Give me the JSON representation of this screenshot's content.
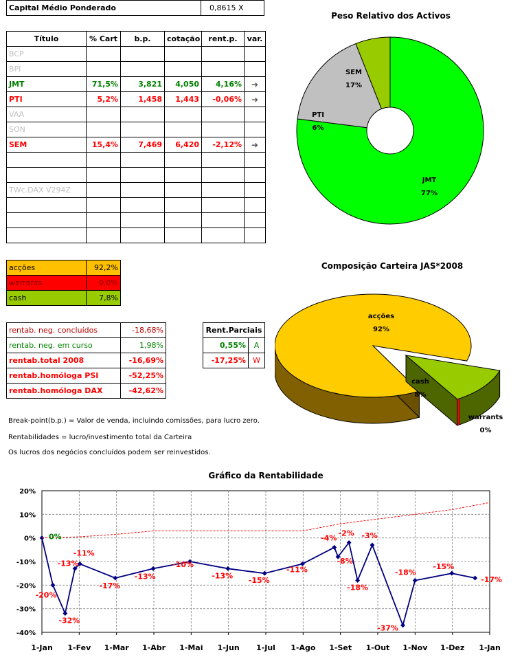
{
  "summary": {
    "label": "Capital Médio Ponderado",
    "value": "0,8615  X"
  },
  "main_table": {
    "headers": [
      "Título",
      "% Cart",
      "b.p.",
      "cotação",
      "rent.p.",
      "var."
    ],
    "rows": [
      {
        "cells": [
          "BCP",
          "",
          "",
          "",
          "",
          ""
        ],
        "style": "grey"
      },
      {
        "cells": [
          "BPI",
          "",
          "",
          "",
          "",
          ""
        ],
        "style": "grey"
      },
      {
        "cells": [
          "JMT",
          "71,5%",
          "3,821",
          "4,050",
          "4,16%",
          "➜"
        ],
        "style": "green"
      },
      {
        "cells": [
          "PTI",
          "5,2%",
          "1,458",
          "1,443",
          "-0,06%",
          "➜"
        ],
        "style": "red"
      },
      {
        "cells": [
          "VAA",
          "",
          "",
          "",
          "",
          ""
        ],
        "style": "grey"
      },
      {
        "cells": [
          "SON",
          "",
          "",
          "",
          "",
          ""
        ],
        "style": "grey"
      },
      {
        "cells": [
          "SEM",
          "15,4%",
          "7,469",
          "6,420",
          "-2,12%",
          "➜"
        ],
        "style": "red"
      },
      {
        "cells": [
          "",
          "",
          "",
          "",
          "",
          ""
        ],
        "style": "grey"
      },
      {
        "cells": [
          "",
          "",
          "",
          "",
          "",
          ""
        ],
        "style": "grey"
      },
      {
        "cells": [
          "TWc.DAX V294Z",
          "",
          "",
          "",
          "",
          ""
        ],
        "style": "grey"
      },
      {
        "cells": [
          "",
          "",
          "",
          "",
          "",
          ""
        ],
        "style": "grey"
      },
      {
        "cells": [
          "",
          "",
          "",
          "",
          "",
          ""
        ],
        "style": "grey"
      },
      {
        "cells": [
          "",
          "",
          "",
          "",
          "",
          ""
        ],
        "style": "grey"
      }
    ]
  },
  "composition": [
    {
      "label": "acções",
      "value": "92,2%",
      "color": "#ffc000",
      "text_color": "#000000"
    },
    {
      "label": "warrants",
      "value": "0,0%",
      "color": "#ff0000",
      "text_color": "#800000"
    },
    {
      "label": "cash",
      "value": "7,8%",
      "color": "#99cc00",
      "text_color": "#000000"
    }
  ],
  "returns": [
    {
      "label": "rentab. neg. concluídos",
      "value": "-18,68%",
      "label_color": "#c00000",
      "value_color": "#c00000",
      "bold": false
    },
    {
      "label": "rentab. neg. em curso",
      "value": "1,98%",
      "label_color": "#008000",
      "value_color": "#008000",
      "bold": false
    },
    {
      "label": "rentab.total 2008",
      "value": "-16,69%",
      "label_color": "#ff0000",
      "value_color": "#ff0000",
      "bold": true
    },
    {
      "label": "rentab.homóloga PSI",
      "value": "-52,25%",
      "label_color": "#ff0000",
      "value_color": "#ff0000",
      "bold": true
    },
    {
      "label": "rentab.homóloga DAX",
      "value": "-42,62%",
      "label_color": "#ff0000",
      "value_color": "#ff0000",
      "bold": true
    }
  ],
  "partial": {
    "header": "Rent.Parciais",
    "rows": [
      {
        "value": "0,55%",
        "letter": "A",
        "color": "#008000"
      },
      {
        "value": "-17,25%",
        "letter": "W",
        "color": "#ff0000"
      }
    ]
  },
  "notes": [
    "Break-point(b.p.) = Valor de venda, incluindo comissões, para lucro zero.",
    "Rentabilidades = lucro/investimento total da Carteira",
    "Os lucros dos negócios concluídos podem ser reinvestidos."
  ],
  "chart_data": [
    {
      "type": "pie",
      "title": "Peso Relativo dos Activos",
      "style": "donut",
      "slices": [
        {
          "label": "JMT",
          "value": 77,
          "display": "77%",
          "color": "#00ff00"
        },
        {
          "label": "SEM",
          "value": 17,
          "display": "17%",
          "color": "#c0c0c0"
        },
        {
          "label": "PTI",
          "value": 6,
          "display": "6%",
          "color": "#99cc00"
        }
      ]
    },
    {
      "type": "pie",
      "title": "Composição Carteira JAS*2008",
      "style": "3d-exploded",
      "slices": [
        {
          "label": "acções",
          "value": 92,
          "display": "92%",
          "color": "#ffcc00"
        },
        {
          "label": "cash",
          "value": 8,
          "display": "8%",
          "color": "#99cc00"
        },
        {
          "label": "warrants",
          "value": 0,
          "display": "0%",
          "color": "#ff0000"
        }
      ]
    },
    {
      "type": "line",
      "title": "Gráfico da Rentabilidade",
      "x_tick_labels": [
        "1-Jan",
        "1-Fev",
        "1-Mar",
        "1-Abr",
        "1-Mai",
        "1-Jun",
        "1-Jul",
        "1-Ago",
        "1-Set",
        "1-Out",
        "1-Nov",
        "1-Dez",
        "1-Jan"
      ],
      "y_tick_labels": [
        "20%",
        "10%",
        "0%",
        "-10%",
        "-20%",
        "-30%",
        "-40%"
      ],
      "ylim": [
        -40,
        20
      ],
      "grid": "horizontal-and-vertical-dashed",
      "series": [
        {
          "style": "solid-navy-markers",
          "color": "#000080",
          "points": [
            {
              "x": "2008-01-01",
              "y": 0,
              "label": "0%",
              "label_color": "#008000"
            },
            {
              "x": "2008-01-10",
              "y": -20,
              "label": "-20%",
              "label_color": "#ff0000"
            },
            {
              "x": "2008-01-20",
              "y": -32,
              "label": "-32%",
              "label_color": "#ff0000"
            },
            {
              "x": "2008-01-28",
              "y": -13,
              "label": "-13%",
              "label_color": "#ff0000"
            },
            {
              "x": "2008-02-01",
              "y": -11,
              "label": "-11%",
              "label_color": "#ff0000"
            },
            {
              "x": "2008-03-01",
              "y": -17,
              "label": "-17%",
              "label_color": "#ff0000"
            },
            {
              "x": "2008-04-01",
              "y": -13,
              "label": "-13%",
              "label_color": "#ff0000"
            },
            {
              "x": "2008-05-01",
              "y": -10,
              "label": "-10%",
              "label_color": "#ff0000"
            },
            {
              "x": "2008-06-01",
              "y": -13,
              "label": "-13%",
              "label_color": "#ff0000"
            },
            {
              "x": "2008-07-01",
              "y": -15,
              "label": "-15%",
              "label_color": "#ff0000"
            },
            {
              "x": "2008-08-01",
              "y": -11,
              "label": "-11%",
              "label_color": "#ff0000"
            },
            {
              "x": "2008-08-27",
              "y": -4,
              "label": "-4%",
              "label_color": "#ff0000"
            },
            {
              "x": "2008-08-30",
              "y": -8,
              "label": "-8%",
              "label_color": "#ff0000"
            },
            {
              "x": "2008-09-08",
              "y": -2,
              "label": "-2%",
              "label_color": "#ff0000"
            },
            {
              "x": "2008-09-15",
              "y": -18,
              "label": "-18%",
              "label_color": "#ff0000"
            },
            {
              "x": "2008-09-27",
              "y": -3,
              "label": "-3%",
              "label_color": "#ff0000"
            },
            {
              "x": "2008-10-22",
              "y": -37,
              "label": "-37%",
              "label_color": "#ff0000"
            },
            {
              "x": "2008-11-01",
              "y": -18,
              "label": "-18%",
              "label_color": "#ff0000"
            },
            {
              "x": "2008-12-01",
              "y": -15,
              "label": "-15%",
              "label_color": "#ff0000"
            },
            {
              "x": "2008-12-20",
              "y": -17,
              "label": "-17%",
              "label_color": "#ff0000"
            }
          ]
        },
        {
          "style": "dashed-red",
          "color": "#ff0000",
          "points": [
            {
              "x": "2008-01-01",
              "y": 0
            },
            {
              "x": "2008-02-01",
              "y": 0.5
            },
            {
              "x": "2008-03-01",
              "y": 1.5
            },
            {
              "x": "2008-04-01",
              "y": 3
            },
            {
              "x": "2008-05-01",
              "y": 3
            },
            {
              "x": "2008-06-01",
              "y": 3
            },
            {
              "x": "2008-07-01",
              "y": 3
            },
            {
              "x": "2008-08-01",
              "y": 3
            },
            {
              "x": "2008-09-01",
              "y": 6
            },
            {
              "x": "2008-10-01",
              "y": 8
            },
            {
              "x": "2008-11-01",
              "y": 10
            },
            {
              "x": "2008-12-01",
              "y": 12
            },
            {
              "x": "2009-01-01",
              "y": 15
            }
          ]
        }
      ]
    }
  ]
}
